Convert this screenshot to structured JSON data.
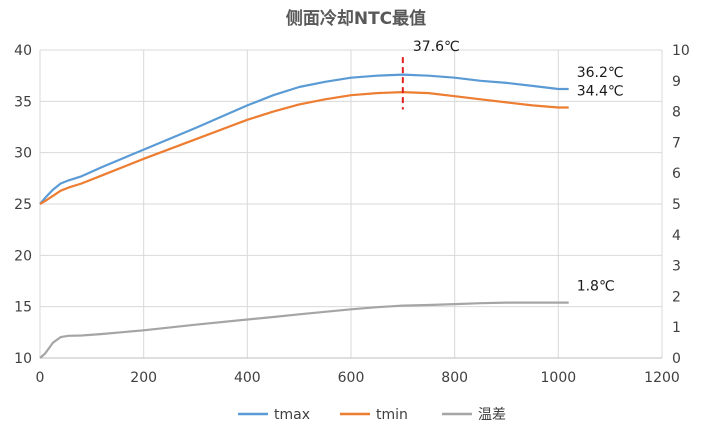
{
  "chart_data": {
    "type": "line",
    "title": "侧面冷却NTC最值",
    "x": [
      0,
      10,
      25,
      40,
      55,
      80,
      120,
      200,
      300,
      400,
      450,
      500,
      550,
      600,
      650,
      700,
      750,
      800,
      850,
      900,
      950,
      1000,
      1020
    ],
    "xlim": [
      0,
      1200
    ],
    "xticks": [
      0,
      200,
      400,
      600,
      800,
      1000,
      1200
    ],
    "ylim_left": [
      10,
      40
    ],
    "yticks_left": [
      10,
      15,
      20,
      25,
      30,
      35,
      40
    ],
    "ylim_right": [
      0,
      10
    ],
    "yticks_right": [
      0,
      1,
      2,
      3,
      4,
      5,
      6,
      7,
      8,
      9,
      10
    ],
    "grid": true,
    "legend_position": "bottom",
    "series": [
      {
        "name": "tmax",
        "axis": "left",
        "color": "#5B9BD5",
        "values": [
          25.0,
          25.6,
          26.4,
          27.0,
          27.3,
          27.7,
          28.6,
          30.3,
          32.4,
          34.6,
          35.6,
          36.4,
          36.9,
          37.3,
          37.5,
          37.6,
          37.5,
          37.3,
          37.0,
          36.8,
          36.5,
          36.2,
          36.2
        ]
      },
      {
        "name": "tmin",
        "axis": "left",
        "color": "#ED7D31",
        "values": [
          25.0,
          25.3,
          25.8,
          26.3,
          26.6,
          27.0,
          27.8,
          29.4,
          31.3,
          33.2,
          34.0,
          34.7,
          35.2,
          35.6,
          35.8,
          35.9,
          35.8,
          35.5,
          35.2,
          34.9,
          34.6,
          34.4,
          34.4
        ]
      },
      {
        "name": "温差",
        "axis": "right",
        "color": "#A5A5A5",
        "values": [
          0.0,
          0.15,
          0.5,
          0.68,
          0.72,
          0.73,
          0.78,
          0.9,
          1.08,
          1.25,
          1.33,
          1.42,
          1.5,
          1.58,
          1.65,
          1.7,
          1.72,
          1.75,
          1.78,
          1.8,
          1.8,
          1.8,
          1.8
        ]
      }
    ],
    "annotations": [
      {
        "text": "37.6℃",
        "x": 700,
        "y": 37.6,
        "axis": "left",
        "label_pos": "above"
      },
      {
        "text": "36.2℃",
        "x": 1020,
        "y": 36.2,
        "axis": "left",
        "label_pos": "right"
      },
      {
        "text": "34.4℃",
        "x": 1020,
        "y": 34.4,
        "axis": "left",
        "label_pos": "right"
      },
      {
        "text": "1.8℃",
        "x": 1020,
        "y": 1.8,
        "axis": "right",
        "label_pos": "right"
      }
    ],
    "marker_line": {
      "x": 700,
      "y_from": 34.2,
      "y_to": 39.3,
      "color": "#E02020"
    }
  }
}
